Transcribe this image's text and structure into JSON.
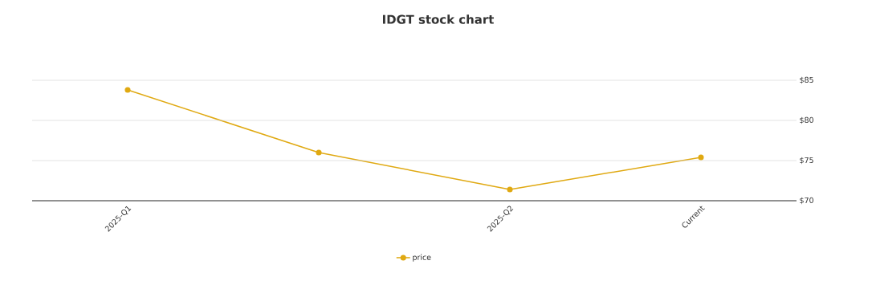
{
  "chart_data": {
    "type": "line",
    "title": "IDGT stock chart",
    "categories": [
      "2025-Q1",
      null,
      "2025-Q2",
      "Current"
    ],
    "series": [
      {
        "name": "price",
        "color": "#e0a912",
        "values": [
          83.8,
          76.0,
          71.4,
          75.4
        ]
      }
    ],
    "ylim": [
      70,
      85
    ],
    "yticks": [
      {
        "value": 70,
        "label": "$70"
      },
      {
        "value": 75,
        "label": "$75"
      },
      {
        "value": 80,
        "label": "$80"
      },
      {
        "value": 85,
        "label": "$85"
      }
    ],
    "grid": "y",
    "legend": "bottom",
    "marker": "circle",
    "line_style": "solid"
  }
}
